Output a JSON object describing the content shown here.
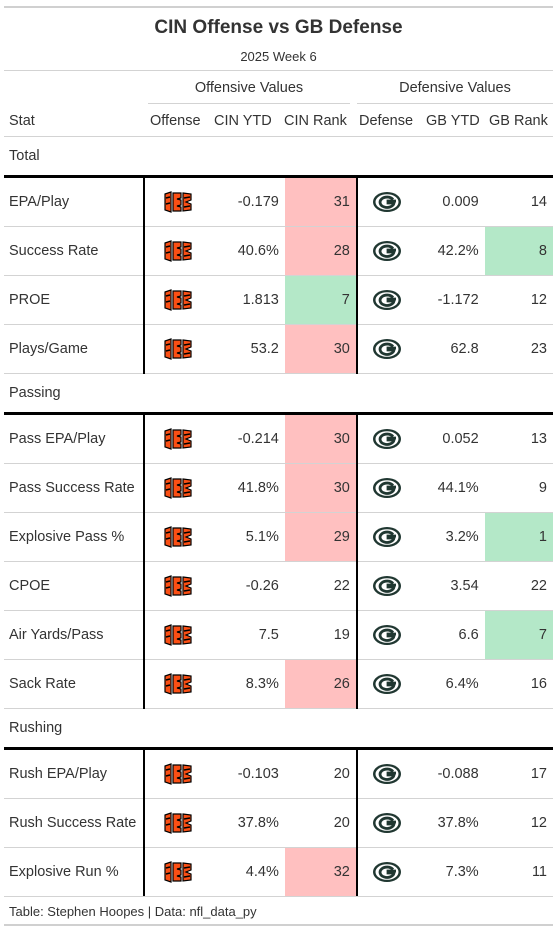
{
  "title": "CIN Offense vs GB Defense",
  "subtitle": "2025 Week 6",
  "spanners": {
    "offense": "Offensive Values",
    "defense": "Defensive Values"
  },
  "columns": {
    "stat": "Stat",
    "offense": "Offense",
    "off_ytd": "CIN YTD",
    "off_rank": "CIN Rank",
    "defense": "Defense",
    "def_ytd": "GB YTD",
    "def_rank": "GB Rank"
  },
  "logos": {
    "offense": "bengals-logo",
    "defense": "packers-logo"
  },
  "colors": {
    "bad_rank": "#ffc0c0",
    "good_rank": "#b4e8c8",
    "bengals_orange": "#fb4f14",
    "packers_green": "#203731"
  },
  "groups": [
    {
      "name": "Total",
      "rows": [
        {
          "stat": "EPA/Play",
          "off_ytd": "-0.179",
          "off_rank": "31",
          "off_tier": "bad",
          "def_ytd": "0.009",
          "def_rank": "14",
          "def_tier": ""
        },
        {
          "stat": "Success Rate",
          "off_ytd": "40.6%",
          "off_rank": "28",
          "off_tier": "bad",
          "def_ytd": "42.2%",
          "def_rank": "8",
          "def_tier": "good"
        },
        {
          "stat": "PROE",
          "off_ytd": "1.813",
          "off_rank": "7",
          "off_tier": "good",
          "def_ytd": "-1.172",
          "def_rank": "12",
          "def_tier": ""
        },
        {
          "stat": "Plays/Game",
          "off_ytd": "53.2",
          "off_rank": "30",
          "off_tier": "bad",
          "def_ytd": "62.8",
          "def_rank": "23",
          "def_tier": ""
        }
      ]
    },
    {
      "name": "Passing",
      "rows": [
        {
          "stat": "Pass EPA/Play",
          "off_ytd": "-0.214",
          "off_rank": "30",
          "off_tier": "bad",
          "def_ytd": "0.052",
          "def_rank": "13",
          "def_tier": ""
        },
        {
          "stat": "Pass Success Rate",
          "off_ytd": "41.8%",
          "off_rank": "30",
          "off_tier": "bad",
          "def_ytd": "44.1%",
          "def_rank": "9",
          "def_tier": ""
        },
        {
          "stat": "Explosive Pass %",
          "off_ytd": "5.1%",
          "off_rank": "29",
          "off_tier": "bad",
          "def_ytd": "3.2%",
          "def_rank": "1",
          "def_tier": "good"
        },
        {
          "stat": "CPOE",
          "off_ytd": "-0.26",
          "off_rank": "22",
          "off_tier": "",
          "def_ytd": "3.54",
          "def_rank": "22",
          "def_tier": ""
        },
        {
          "stat": "Air Yards/Pass",
          "off_ytd": "7.5",
          "off_rank": "19",
          "off_tier": "",
          "def_ytd": "6.6",
          "def_rank": "7",
          "def_tier": "good"
        },
        {
          "stat": "Sack Rate",
          "off_ytd": "8.3%",
          "off_rank": "26",
          "off_tier": "bad",
          "def_ytd": "6.4%",
          "def_rank": "16",
          "def_tier": ""
        }
      ]
    },
    {
      "name": "Rushing",
      "rows": [
        {
          "stat": "Rush EPA/Play",
          "off_ytd": "-0.103",
          "off_rank": "20",
          "off_tier": "",
          "def_ytd": "-0.088",
          "def_rank": "17",
          "def_tier": ""
        },
        {
          "stat": "Rush Success Rate",
          "off_ytd": "37.8%",
          "off_rank": "20",
          "off_tier": "",
          "def_ytd": "37.8%",
          "def_rank": "12",
          "def_tier": ""
        },
        {
          "stat": "Explosive Run %",
          "off_ytd": "4.4%",
          "off_rank": "32",
          "off_tier": "bad",
          "def_ytd": "7.3%",
          "def_rank": "11",
          "def_tier": ""
        }
      ]
    }
  ],
  "footer": "Table: Stephen Hoopes | Data: nfl_data_py"
}
